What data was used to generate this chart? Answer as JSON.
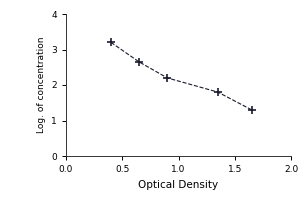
{
  "x": [
    0.4,
    0.65,
    0.9,
    1.35,
    1.65
  ],
  "y": [
    3.2,
    2.65,
    2.2,
    1.8,
    1.3
  ],
  "xlabel": "Optical Density",
  "ylabel": "Log. of concentration",
  "xlim": [
    0,
    2
  ],
  "ylim": [
    0,
    4
  ],
  "xticks": [
    0,
    0.5,
    1,
    1.5,
    2
  ],
  "yticks": [
    0,
    1,
    2,
    3,
    4
  ],
  "line_color": "#1a1a2e",
  "line_style": "--",
  "marker": "+",
  "marker_size": 6,
  "marker_linewidth": 1.2,
  "linewidth": 0.8,
  "background_color": "#ffffff",
  "fig_background": "#ffffff",
  "xlabel_fontsize": 7.5,
  "ylabel_fontsize": 6.5,
  "tick_fontsize": 6.5
}
